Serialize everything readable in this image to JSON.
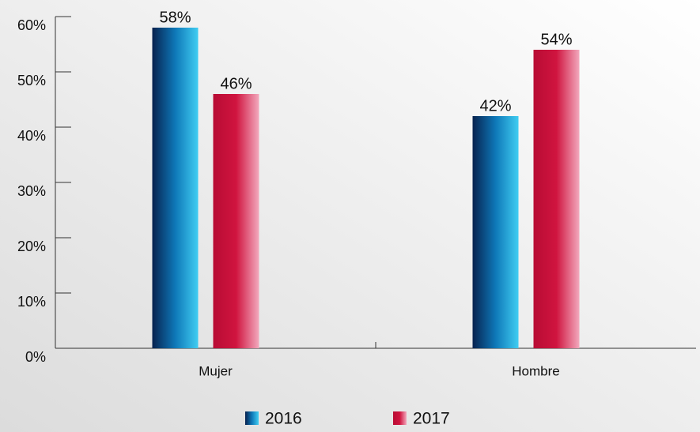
{
  "chart_data": {
    "type": "bar",
    "categories": [
      "Mujer",
      "Hombre"
    ],
    "series": [
      {
        "name": "2016",
        "color": "#0e78b8",
        "values": [
          58,
          42
        ],
        "value_labels": [
          "58%",
          "42%"
        ]
      },
      {
        "name": "2017",
        "color": "#d0143f",
        "values": [
          46,
          54
        ],
        "value_labels": [
          "46%",
          "54%"
        ]
      }
    ],
    "ylim": [
      0,
      60
    ],
    "yticks": [
      {
        "value": 0,
        "label": "0%"
      },
      {
        "value": 10,
        "label": "10%"
      },
      {
        "value": 20,
        "label": "20%"
      },
      {
        "value": 30,
        "label": "30%"
      },
      {
        "value": 40,
        "label": "40%"
      },
      {
        "value": 50,
        "label": "50%"
      },
      {
        "value": 60,
        "label": "60%"
      }
    ],
    "legend": "bottom"
  }
}
